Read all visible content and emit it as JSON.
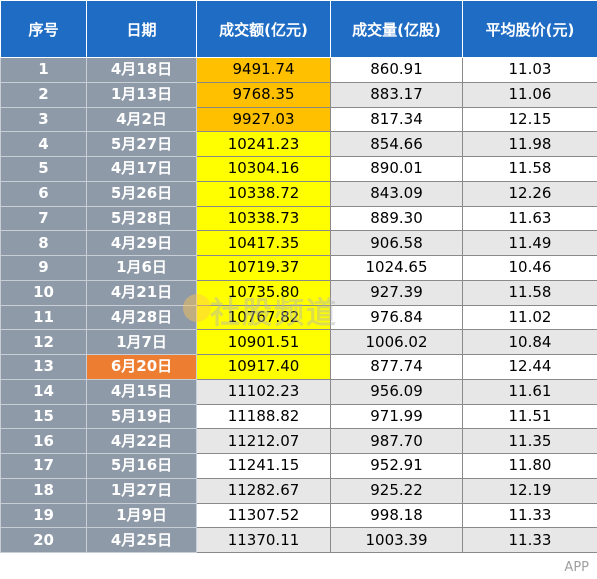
{
  "headers": [
    "序号",
    "日期",
    "成交额(亿元)",
    "成交量(亿股)",
    "平均股价(元)"
  ],
  "colors": {
    "header_bg": "#1f6cc4",
    "index_bg": "#8e9aa8",
    "orange_amount": "#ffc000",
    "yellow_amount": "#ffff00",
    "orange_date": "#ed7d31"
  },
  "rows": [
    {
      "no": "1",
      "date": "4月18日",
      "amount": "9491.74",
      "volume": "860.91",
      "price": "11.03",
      "amount_hl": "orange",
      "date_hl": ""
    },
    {
      "no": "2",
      "date": "1月13日",
      "amount": "9768.35",
      "volume": "883.17",
      "price": "11.06",
      "amount_hl": "orange",
      "date_hl": ""
    },
    {
      "no": "3",
      "date": "4月2日",
      "amount": "9927.03",
      "volume": "817.34",
      "price": "12.15",
      "amount_hl": "orange",
      "date_hl": ""
    },
    {
      "no": "4",
      "date": "5月27日",
      "amount": "10241.23",
      "volume": "854.66",
      "price": "11.98",
      "amount_hl": "yellow",
      "date_hl": ""
    },
    {
      "no": "5",
      "date": "4月17日",
      "amount": "10304.16",
      "volume": "890.01",
      "price": "11.58",
      "amount_hl": "yellow",
      "date_hl": ""
    },
    {
      "no": "6",
      "date": "5月26日",
      "amount": "10338.72",
      "volume": "843.09",
      "price": "12.26",
      "amount_hl": "yellow",
      "date_hl": ""
    },
    {
      "no": "7",
      "date": "5月28日",
      "amount": "10338.73",
      "volume": "889.30",
      "price": "11.63",
      "amount_hl": "yellow",
      "date_hl": ""
    },
    {
      "no": "8",
      "date": "4月29日",
      "amount": "10417.35",
      "volume": "906.58",
      "price": "11.49",
      "amount_hl": "yellow",
      "date_hl": ""
    },
    {
      "no": "9",
      "date": "1月6日",
      "amount": "10719.37",
      "volume": "1024.65",
      "price": "10.46",
      "amount_hl": "yellow",
      "date_hl": ""
    },
    {
      "no": "10",
      "date": "4月21日",
      "amount": "10735.80",
      "volume": "927.39",
      "price": "11.58",
      "amount_hl": "yellow",
      "date_hl": ""
    },
    {
      "no": "11",
      "date": "4月28日",
      "amount": "10767.82",
      "volume": "976.84",
      "price": "11.02",
      "amount_hl": "yellow",
      "date_hl": ""
    },
    {
      "no": "12",
      "date": "1月7日",
      "amount": "10901.51",
      "volume": "1006.02",
      "price": "10.84",
      "amount_hl": "yellow",
      "date_hl": ""
    },
    {
      "no": "13",
      "date": "6月20日",
      "amount": "10917.40",
      "volume": "877.74",
      "price": "12.44",
      "amount_hl": "yellow",
      "date_hl": "orange"
    },
    {
      "no": "14",
      "date": "4月15日",
      "amount": "11102.23",
      "volume": "956.09",
      "price": "11.61",
      "amount_hl": "",
      "date_hl": ""
    },
    {
      "no": "15",
      "date": "5月19日",
      "amount": "11188.82",
      "volume": "971.99",
      "price": "11.51",
      "amount_hl": "",
      "date_hl": ""
    },
    {
      "no": "16",
      "date": "4月22日",
      "amount": "11212.07",
      "volume": "987.70",
      "price": "11.35",
      "amount_hl": "",
      "date_hl": ""
    },
    {
      "no": "17",
      "date": "5月16日",
      "amount": "11241.15",
      "volume": "952.91",
      "price": "11.80",
      "amount_hl": "",
      "date_hl": ""
    },
    {
      "no": "18",
      "date": "1月27日",
      "amount": "11282.67",
      "volume": "925.22",
      "price": "12.19",
      "amount_hl": "",
      "date_hl": ""
    },
    {
      "no": "19",
      "date": "1月9日",
      "amount": "11307.52",
      "volume": "998.18",
      "price": "11.33",
      "amount_hl": "",
      "date_hl": ""
    },
    {
      "no": "20",
      "date": "4月25日",
      "amount": "11370.11",
      "volume": "1003.39",
      "price": "11.33",
      "amount_hl": "",
      "date_hl": ""
    }
  ],
  "watermark_center": "社股频道",
  "watermark_corner": "APP"
}
